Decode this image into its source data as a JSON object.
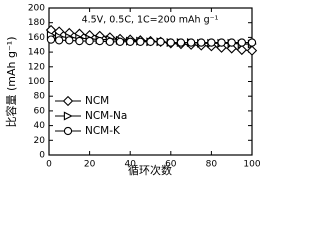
{
  "chart_data": {
    "type": "line",
    "annotation": "4.5V, 0.5C, 1C=200 mAh g⁻¹",
    "xlabel": "循环次数",
    "ylabel": "比容量 (mAh g⁻¹)",
    "x": [
      1,
      5,
      10,
      15,
      20,
      25,
      30,
      35,
      40,
      45,
      50,
      55,
      60,
      65,
      70,
      75,
      80,
      85,
      90,
      95,
      100
    ],
    "series": [
      {
        "name": "NCM",
        "color": "#000000",
        "marker": "diamond",
        "values": [
          170,
          168,
          166,
          165,
          163,
          162,
          160,
          158,
          157,
          156,
          155,
          154,
          152,
          151,
          150,
          149,
          148,
          146,
          145,
          143,
          142
        ]
      },
      {
        "name": "NCM-Na",
        "color": "#000000",
        "marker": "triangle-right",
        "values": [
          163,
          161,
          160,
          159,
          158,
          157,
          157,
          156,
          155,
          155,
          154,
          154,
          153,
          153,
          153,
          152,
          152,
          152,
          152,
          151,
          151
        ]
      },
      {
        "name": "NCM-K",
        "color": "#000000",
        "marker": "circle",
        "values": [
          157,
          156,
          156,
          155,
          155,
          155,
          154,
          154,
          154,
          154,
          154,
          154,
          153,
          153,
          153,
          153,
          153,
          153,
          153,
          153,
          153
        ]
      }
    ],
    "xlim": [
      0,
      100
    ],
    "xticks": [
      0,
      20,
      40,
      60,
      80,
      100
    ],
    "ylim": [
      0,
      200
    ],
    "yticks": [
      0,
      20,
      40,
      60,
      80,
      100,
      120,
      140,
      160,
      180,
      200
    ],
    "legend": "lower left"
  }
}
